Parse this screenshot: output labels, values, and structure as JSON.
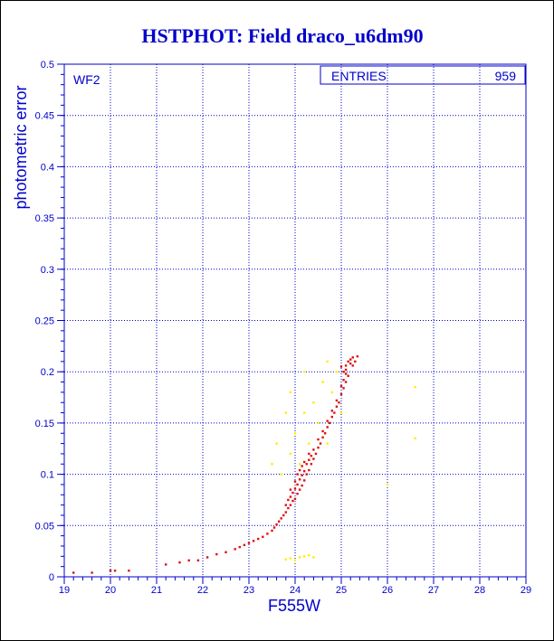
{
  "chart_data": {
    "type": "scatter",
    "title": "HSTPHOT: Field draco_u6dm90",
    "xlabel": "F555W",
    "ylabel": "photometric error",
    "xlim": [
      19,
      29
    ],
    "ylim": [
      0,
      0.5
    ],
    "xticks": [
      "19",
      "20",
      "21",
      "22",
      "23",
      "24",
      "25",
      "26",
      "27",
      "28",
      "29"
    ],
    "yticks": [
      "0",
      "0.05",
      "0.1",
      "0.15",
      "0.2",
      "0.25",
      "0.3",
      "0.35",
      "0.4",
      "0.45",
      "0.5"
    ],
    "grid": true,
    "panel_label": "WF2",
    "stats_box": {
      "label": "ENTRIES",
      "value": "959"
    },
    "colors": {
      "title": "#0000cc",
      "axes": "#0000cc",
      "grid": "#0000cc",
      "main_series": "#dd1111",
      "secondary_series": "#ffee00"
    },
    "series": [
      {
        "color": "#dd1111",
        "points": [
          [
            19.2,
            0.004
          ],
          [
            19.6,
            0.004
          ],
          [
            20.0,
            0.006
          ],
          [
            20.1,
            0.006
          ],
          [
            20.4,
            0.006
          ],
          [
            21.2,
            0.012
          ],
          [
            21.5,
            0.014
          ],
          [
            21.7,
            0.016
          ],
          [
            21.9,
            0.016
          ],
          [
            22.1,
            0.019
          ],
          [
            22.3,
            0.022
          ],
          [
            22.5,
            0.024
          ],
          [
            22.7,
            0.027
          ],
          [
            22.8,
            0.029
          ],
          [
            22.9,
            0.031
          ],
          [
            23.0,
            0.033
          ],
          [
            23.1,
            0.035
          ],
          [
            23.2,
            0.037
          ],
          [
            23.3,
            0.039
          ],
          [
            23.4,
            0.042
          ],
          [
            23.5,
            0.045
          ],
          [
            23.55,
            0.048
          ],
          [
            23.6,
            0.051
          ],
          [
            23.65,
            0.054
          ],
          [
            23.7,
            0.057
          ],
          [
            23.75,
            0.06
          ],
          [
            23.8,
            0.063
          ],
          [
            23.8,
            0.07
          ],
          [
            23.85,
            0.067
          ],
          [
            23.85,
            0.075
          ],
          [
            23.9,
            0.07
          ],
          [
            23.9,
            0.078
          ],
          [
            23.9,
            0.085
          ],
          [
            23.95,
            0.074
          ],
          [
            23.95,
            0.082
          ],
          [
            24.0,
            0.076
          ],
          [
            24.0,
            0.086
          ],
          [
            24.0,
            0.093
          ],
          [
            24.05,
            0.081
          ],
          [
            24.05,
            0.09
          ],
          [
            24.05,
            0.1
          ],
          [
            24.1,
            0.085
          ],
          [
            24.1,
            0.095
          ],
          [
            24.1,
            0.104
          ],
          [
            24.15,
            0.089
          ],
          [
            24.15,
            0.099
          ],
          [
            24.15,
            0.108
          ],
          [
            24.2,
            0.094
          ],
          [
            24.2,
            0.103
          ],
          [
            24.2,
            0.112
          ],
          [
            24.25,
            0.1
          ],
          [
            24.25,
            0.11
          ],
          [
            24.3,
            0.104
          ],
          [
            24.3,
            0.114
          ],
          [
            24.3,
            0.12
          ],
          [
            24.35,
            0.11
          ],
          [
            24.35,
            0.118
          ],
          [
            24.4,
            0.115
          ],
          [
            24.4,
            0.124
          ],
          [
            24.45,
            0.12
          ],
          [
            24.5,
            0.126
          ],
          [
            24.5,
            0.134
          ],
          [
            24.55,
            0.13
          ],
          [
            24.6,
            0.136
          ],
          [
            24.6,
            0.142
          ],
          [
            24.65,
            0.14
          ],
          [
            24.7,
            0.146
          ],
          [
            24.7,
            0.152
          ],
          [
            24.75,
            0.15
          ],
          [
            24.8,
            0.156
          ],
          [
            24.8,
            0.162
          ],
          [
            24.85,
            0.16
          ],
          [
            24.9,
            0.166
          ],
          [
            24.9,
            0.172
          ],
          [
            24.95,
            0.17
          ],
          [
            25.0,
            0.178
          ],
          [
            25.0,
            0.186
          ],
          [
            25.05,
            0.184
          ],
          [
            25.05,
            0.192
          ],
          [
            25.1,
            0.19
          ],
          [
            25.1,
            0.198
          ],
          [
            25.05,
            0.2
          ],
          [
            25.0,
            0.205
          ],
          [
            25.1,
            0.206
          ],
          [
            25.15,
            0.21
          ],
          [
            25.2,
            0.212
          ],
          [
            25.25,
            0.214
          ],
          [
            25.2,
            0.208
          ],
          [
            25.15,
            0.196
          ],
          [
            25.1,
            0.202
          ],
          [
            25.25,
            0.206
          ],
          [
            25.3,
            0.21
          ],
          [
            25.35,
            0.215
          ]
        ]
      },
      {
        "color": "#ffee00",
        "points": [
          [
            23.8,
            0.017
          ],
          [
            23.9,
            0.018
          ],
          [
            24.0,
            0.016
          ],
          [
            24.1,
            0.019
          ],
          [
            24.2,
            0.02
          ],
          [
            24.3,
            0.021
          ],
          [
            24.4,
            0.019
          ],
          [
            23.5,
            0.11
          ],
          [
            23.6,
            0.13
          ],
          [
            23.7,
            0.1
          ],
          [
            23.8,
            0.16
          ],
          [
            23.9,
            0.12
          ],
          [
            23.9,
            0.18
          ],
          [
            24.0,
            0.14
          ],
          [
            24.1,
            0.11
          ],
          [
            24.2,
            0.16
          ],
          [
            24.2,
            0.2
          ],
          [
            24.3,
            0.13
          ],
          [
            24.4,
            0.17
          ],
          [
            24.5,
            0.15
          ],
          [
            24.6,
            0.19
          ],
          [
            24.7,
            0.13
          ],
          [
            24.7,
            0.21
          ],
          [
            24.8,
            0.18
          ],
          [
            24.9,
            0.2
          ],
          [
            25.0,
            0.16
          ],
          [
            26.0,
            0.09
          ],
          [
            26.6,
            0.185
          ],
          [
            26.6,
            0.135
          ]
        ]
      }
    ]
  }
}
